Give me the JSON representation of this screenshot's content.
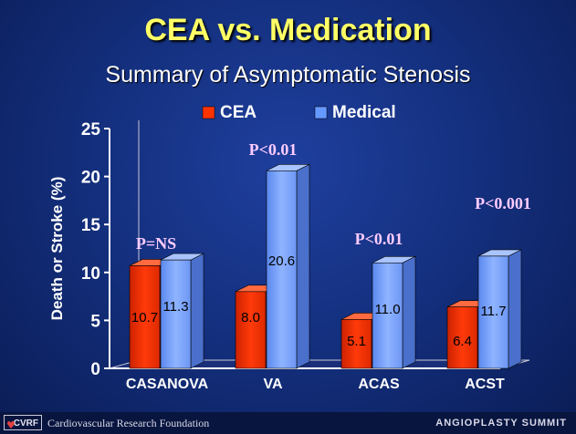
{
  "header": {
    "title": "CEA vs. Medication",
    "subtitle": "Summary of Asymptomatic Stenosis"
  },
  "chart_data": {
    "type": "bar",
    "ylabel": "Death or Stroke (%)",
    "ylim": [
      0,
      25
    ],
    "yticks": [
      0,
      5,
      10,
      15,
      20,
      25
    ],
    "categories": [
      "CASANOVA",
      "VA",
      "ACAS",
      "ACST"
    ],
    "series": [
      {
        "name": "CEA",
        "values": [
          10.7,
          8.0,
          5.1,
          6.4
        ],
        "labels": [
          "10.7",
          "8.0",
          "5.1",
          "6.4"
        ],
        "color": "#ff3300"
      },
      {
        "name": "Medical",
        "values": [
          11.3,
          20.6,
          11.0,
          11.7
        ],
        "labels": [
          "11.3",
          "20.6",
          "11.0",
          "11.7"
        ],
        "color": "#6699ff"
      }
    ],
    "annotations": [
      "P=NS",
      "P<0.01",
      "P<0.01",
      "P<0.001"
    ],
    "legend_position": "top",
    "grid": false
  },
  "footer": {
    "logo_text": "CVRF",
    "organization": "Cardiovascular Research Foundation",
    "brand": "ANGIOPLASTY SUMMIT"
  },
  "colors": {
    "title": "#ffff66",
    "annotation": "#ffccff",
    "axis": "#ffffff"
  }
}
